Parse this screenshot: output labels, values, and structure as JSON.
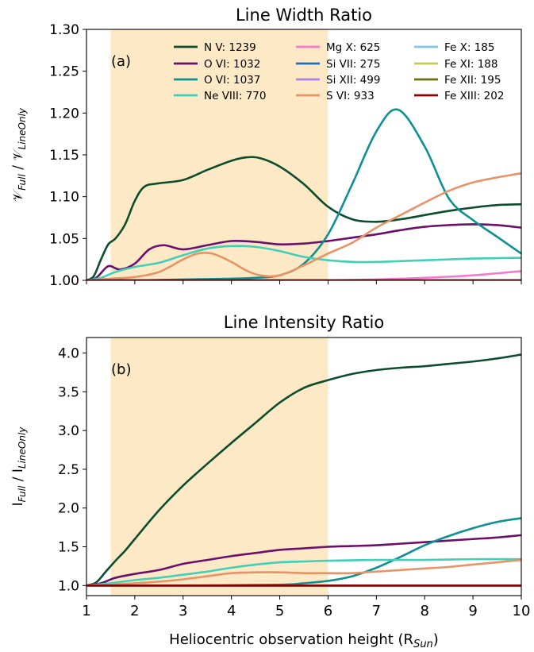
{
  "figure": {
    "xlabel": "Heliocentric observation height (R",
    "xlabel_sub": "Sun",
    "xticks": [
      1,
      2,
      3,
      4,
      5,
      6,
      7,
      8,
      9,
      10
    ],
    "shade_range": [
      1.5,
      6.0
    ],
    "shade_color": "#fde9c6"
  },
  "legend": [
    {
      "label": "N V: 1239",
      "color": "#0b4d2c"
    },
    {
      "label": "O VI: 1032",
      "color": "#6b0f6b"
    },
    {
      "label": "O VI: 1037",
      "color": "#0e9090"
    },
    {
      "label": "Ne VIII: 770",
      "color": "#40d0b8"
    },
    {
      "label": "Mg X: 625",
      "color": "#f47ad0"
    },
    {
      "label": "Si VII: 275",
      "color": "#1f6fbd"
    },
    {
      "label": "Si XII: 499",
      "color": "#b07ff0"
    },
    {
      "label": "S VI: 933",
      "color": "#e69467"
    },
    {
      "label": "Fe X: 185",
      "color": "#85c3ef"
    },
    {
      "label": "Fe XI: 188",
      "color": "#c9c95a"
    },
    {
      "label": "Fe XII: 195",
      "color": "#6f6f0c"
    },
    {
      "label": "Fe XIII: 202",
      "color": "#8b0000"
    }
  ],
  "chart_data": [
    {
      "type": "line",
      "title": "Line Width Ratio",
      "panel_label": "(a)",
      "ylabel": "𝒱Full / 𝒱LineOnly",
      "ylabel_main1": "𝒱",
      "ylabel_sub1": "Full",
      "ylabel_mid": " / 𝒱",
      "ylabel_sub2": "LineOnly",
      "xlim": [
        1,
        10
      ],
      "ylim": [
        1.0,
        1.3
      ],
      "yticks": [
        "1.00",
        "1.05",
        "1.10",
        "1.15",
        "1.20",
        "1.25",
        "1.30"
      ],
      "series": [
        {
          "name": "N V: 1239",
          "x": [
            1,
            1.15,
            1.3,
            1.45,
            1.6,
            1.8,
            2.0,
            2.2,
            2.5,
            3.0,
            3.5,
            4.0,
            4.3,
            4.6,
            5.0,
            5.5,
            6.0,
            6.5,
            7.0,
            7.5,
            8.0,
            8.5,
            9.0,
            9.5,
            10.0
          ],
          "y": [
            1.0,
            1.005,
            1.025,
            1.043,
            1.05,
            1.067,
            1.095,
            1.112,
            1.116,
            1.12,
            1.132,
            1.143,
            1.147,
            1.146,
            1.136,
            1.115,
            1.088,
            1.073,
            1.07,
            1.073,
            1.078,
            1.083,
            1.087,
            1.09,
            1.091
          ]
        },
        {
          "name": "O VI: 1032",
          "x": [
            1,
            1.2,
            1.4,
            1.5,
            1.7,
            2.0,
            2.3,
            2.6,
            3.0,
            3.5,
            4.0,
            4.5,
            5.0,
            5.5,
            6.0,
            6.5,
            7.0,
            7.5,
            8.0,
            8.5,
            9.0,
            9.5,
            10.0
          ],
          "y": [
            1.0,
            1.003,
            1.015,
            1.017,
            1.013,
            1.02,
            1.037,
            1.042,
            1.037,
            1.042,
            1.047,
            1.046,
            1.043,
            1.044,
            1.047,
            1.051,
            1.055,
            1.06,
            1.064,
            1.066,
            1.067,
            1.066,
            1.063
          ]
        },
        {
          "name": "O VI: 1037",
          "x": [
            1,
            2,
            3,
            4,
            4.5,
            5,
            5.5,
            6.0,
            6.5,
            7.0,
            7.45,
            8.0,
            8.5,
            9.0,
            9.5,
            10.0
          ],
          "y": [
            1.0,
            1.0,
            1.001,
            1.002,
            1.003,
            1.006,
            1.02,
            1.055,
            1.115,
            1.178,
            1.204,
            1.16,
            1.098,
            1.072,
            1.052,
            1.032
          ]
        },
        {
          "name": "Ne VIII: 770",
          "x": [
            1,
            1.3,
            1.6,
            2.0,
            2.5,
            3.0,
            3.5,
            4.0,
            4.5,
            5.0,
            5.5,
            6.0,
            6.5,
            7.0,
            7.5,
            8.0,
            9.0,
            10.0
          ],
          "y": [
            1.0,
            1.003,
            1.01,
            1.016,
            1.021,
            1.03,
            1.038,
            1.041,
            1.04,
            1.035,
            1.028,
            1.024,
            1.022,
            1.022,
            1.023,
            1.024,
            1.026,
            1.027
          ]
        },
        {
          "name": "Mg X: 625",
          "x": [
            1,
            3,
            5,
            6,
            7,
            8,
            9,
            10
          ],
          "y": [
            1.0,
            1.0,
            1.0,
            1.0,
            1.001,
            1.003,
            1.006,
            1.011
          ]
        },
        {
          "name": "Si VII: 275",
          "x": [
            1,
            10
          ],
          "y": [
            1.0,
            1.0
          ]
        },
        {
          "name": "Si XII: 499",
          "x": [
            1,
            10
          ],
          "y": [
            1.0,
            1.0
          ]
        },
        {
          "name": "S VI: 933",
          "x": [
            1,
            1.5,
            2.0,
            2.5,
            3.0,
            3.3,
            3.6,
            4.0,
            4.3,
            4.6,
            5.0,
            5.5,
            6.0,
            6.5,
            7.0,
            7.5,
            8.0,
            8.5,
            9.0,
            9.5,
            10.0
          ],
          "y": [
            1.0,
            1.002,
            1.004,
            1.01,
            1.025,
            1.032,
            1.032,
            1.022,
            1.012,
            1.006,
            1.006,
            1.018,
            1.032,
            1.045,
            1.063,
            1.078,
            1.093,
            1.107,
            1.117,
            1.123,
            1.128
          ]
        },
        {
          "name": "Fe X: 185",
          "x": [
            1,
            10
          ],
          "y": [
            1.0,
            1.0
          ]
        },
        {
          "name": "Fe XI: 188",
          "x": [
            1,
            10
          ],
          "y": [
            1.0,
            1.0
          ]
        },
        {
          "name": "Fe XII: 195",
          "x": [
            1,
            10
          ],
          "y": [
            1.0,
            1.0
          ]
        },
        {
          "name": "Fe XIII: 202",
          "x": [
            1,
            10
          ],
          "y": [
            1.0,
            1.0
          ]
        }
      ]
    },
    {
      "type": "line",
      "title": "Line Intensity Ratio",
      "panel_label": "(b)",
      "ylabel": "IFull / ILineOnly",
      "ylabel_main1": "I",
      "ylabel_sub1": "Full",
      "ylabel_mid": " / I",
      "ylabel_sub2": "LineOnly",
      "xlim": [
        1,
        10
      ],
      "ylim": [
        0.87,
        4.2
      ],
      "yticks": [
        "1.0",
        "1.5",
        "2.0",
        "2.5",
        "3.0",
        "3.5",
        "4.0"
      ],
      "series": [
        {
          "name": "N V: 1239",
          "x": [
            1,
            1.2,
            1.4,
            1.6,
            1.8,
            2.0,
            2.5,
            3.0,
            3.5,
            4.0,
            4.5,
            5.0,
            5.5,
            6.0,
            6.5,
            7.0,
            7.5,
            8.0,
            8.5,
            9.0,
            9.5,
            10.0
          ],
          "y": [
            1.0,
            1.04,
            1.18,
            1.32,
            1.45,
            1.6,
            1.97,
            2.29,
            2.57,
            2.84,
            3.1,
            3.36,
            3.55,
            3.65,
            3.73,
            3.78,
            3.81,
            3.83,
            3.86,
            3.89,
            3.93,
            3.98
          ]
        },
        {
          "name": "O VI: 1032",
          "x": [
            1,
            1.3,
            1.6,
            2.0,
            2.5,
            3.0,
            3.5,
            4.0,
            4.5,
            5.0,
            5.5,
            6.0,
            6.5,
            7.0,
            7.5,
            8.0,
            8.5,
            9.0,
            9.5,
            10.0
          ],
          "y": [
            1.0,
            1.03,
            1.1,
            1.15,
            1.2,
            1.28,
            1.33,
            1.38,
            1.42,
            1.46,
            1.48,
            1.5,
            1.51,
            1.52,
            1.54,
            1.56,
            1.58,
            1.6,
            1.62,
            1.65
          ]
        },
        {
          "name": "O VI: 1037",
          "x": [
            1,
            3,
            5,
            5.5,
            6.0,
            6.5,
            7.0,
            7.5,
            8.0,
            8.5,
            9.0,
            9.5,
            10.0
          ],
          "y": [
            1.0,
            1.0,
            1.01,
            1.03,
            1.06,
            1.12,
            1.23,
            1.37,
            1.52,
            1.64,
            1.74,
            1.82,
            1.87
          ]
        },
        {
          "name": "Ne VIII: 770",
          "x": [
            1,
            1.5,
            2.0,
            2.5,
            3.0,
            3.5,
            4.0,
            4.5,
            5.0,
            5.5,
            6.0,
            7.0,
            8.0,
            9.0,
            10.0
          ],
          "y": [
            1.0,
            1.03,
            1.07,
            1.1,
            1.14,
            1.18,
            1.23,
            1.27,
            1.3,
            1.31,
            1.32,
            1.33,
            1.33,
            1.34,
            1.34
          ]
        },
        {
          "name": "Mg X: 625",
          "x": [
            1,
            10
          ],
          "y": [
            1.0,
            1.0
          ]
        },
        {
          "name": "Si VII: 275",
          "x": [
            1,
            10
          ],
          "y": [
            1.0,
            1.0
          ]
        },
        {
          "name": "Si XII: 499",
          "x": [
            1,
            10
          ],
          "y": [
            1.0,
            1.0
          ]
        },
        {
          "name": "S VI: 933",
          "x": [
            1,
            1.5,
            2.0,
            2.5,
            3.0,
            3.5,
            4.0,
            4.5,
            5.0,
            5.5,
            6.0,
            6.5,
            7.0,
            7.5,
            8.0,
            8.5,
            9.0,
            9.5,
            10.0
          ],
          "y": [
            1.0,
            1.01,
            1.03,
            1.05,
            1.08,
            1.12,
            1.16,
            1.17,
            1.17,
            1.16,
            1.16,
            1.16,
            1.18,
            1.2,
            1.22,
            1.24,
            1.27,
            1.3,
            1.33
          ]
        },
        {
          "name": "Fe X: 185",
          "x": [
            1,
            10
          ],
          "y": [
            1.0,
            1.0
          ]
        },
        {
          "name": "Fe XI: 188",
          "x": [
            1,
            10
          ],
          "y": [
            1.0,
            1.0
          ]
        },
        {
          "name": "Fe XII: 195",
          "x": [
            1,
            10
          ],
          "y": [
            1.0,
            1.0
          ]
        },
        {
          "name": "Fe XIII: 202",
          "x": [
            1,
            10
          ],
          "y": [
            1.0,
            1.0
          ]
        }
      ]
    }
  ]
}
